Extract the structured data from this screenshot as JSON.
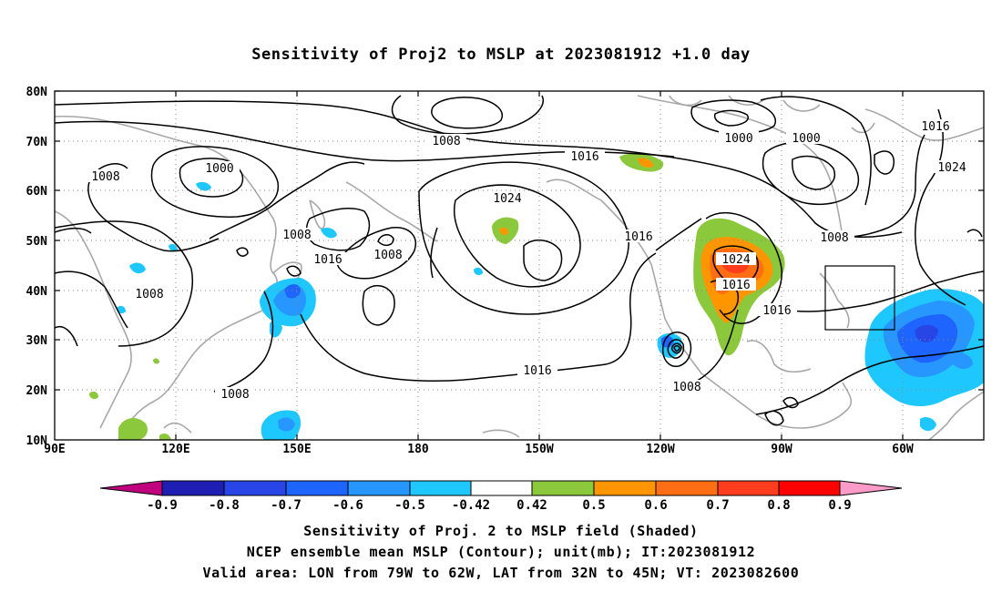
{
  "title": "Sensitivity of Proj2 to MSLP at 2023081912 +1.0 day",
  "lat_labels": [
    "80N",
    "70N",
    "60N",
    "50N",
    "40N",
    "30N",
    "20N",
    "10N"
  ],
  "lon_labels": [
    "90E",
    "120E",
    "150E",
    "180",
    "150W",
    "120W",
    "90W",
    "60W"
  ],
  "contour_labels": [
    "1008",
    "1000",
    "1008",
    "1008",
    "1008",
    "1016",
    "1008",
    "1008",
    "1024",
    "1016",
    "1016",
    "1000",
    "1000",
    "1016",
    "1024",
    "1008",
    "1024",
    "1016",
    "1016",
    "1016",
    "1008",
    "1008"
  ],
  "colorbar": {
    "labels": [
      "-0.9",
      "-0.8",
      "-0.7",
      "-0.6",
      "-0.5",
      "-0.42",
      "0.42",
      "0.5",
      "0.6",
      "0.7",
      "0.8",
      "0.9"
    ],
    "colors": [
      "#c0007f",
      "#1e1eb4",
      "#2846e6",
      "#1e64ff",
      "#2896ff",
      "#1ec8ff",
      "#ffffff",
      "#8cc83c",
      "#ff9600",
      "#ff6e14",
      "#ff3c1e",
      "#ff0000",
      "#ff9bc8"
    ]
  },
  "footer": {
    "line1": "Sensitivity of Proj. 2 to MSLP field (Shaded)",
    "line2": "NCEP ensemble mean MSLP (Contour); unit(mb); IT:2023081912",
    "line3": "Valid area: LON from 79W to 62W, LAT from 32N to 45N; VT: 2023082600"
  }
}
